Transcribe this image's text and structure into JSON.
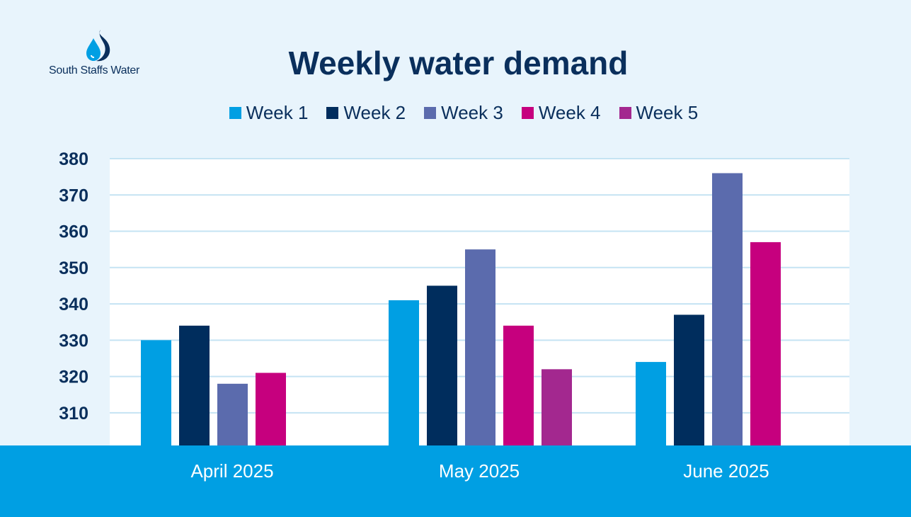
{
  "brand": {
    "name": "South Staffs Water",
    "accent_color": "#009fe3",
    "text_color": "#0a2f5c",
    "icon": "water-drop-icon"
  },
  "chart_data": {
    "type": "bar",
    "title": "Weekly water demand",
    "categories": [
      "April 2025",
      "May 2025",
      "June 2025"
    ],
    "series": [
      {
        "name": "Week 1",
        "color": "#009fe3",
        "values": [
          330,
          341,
          324
        ]
      },
      {
        "name": "Week 2",
        "color": "#002d5d",
        "values": [
          334,
          345,
          337
        ]
      },
      {
        "name": "Week 3",
        "color": "#5b6bad",
        "values": [
          318,
          355,
          376
        ]
      },
      {
        "name": "Week 4",
        "color": "#c6007e",
        "values": [
          321,
          334,
          357
        ]
      },
      {
        "name": "Week 5",
        "color": "#a3288f",
        "values": [
          null,
          322,
          null
        ]
      }
    ],
    "yticks": [
      310,
      320,
      330,
      340,
      350,
      360,
      370,
      380
    ],
    "ylim": [
      301,
      380
    ],
    "xlabel": "",
    "ylabel": "",
    "grid": true,
    "legend_position": "top-center"
  }
}
